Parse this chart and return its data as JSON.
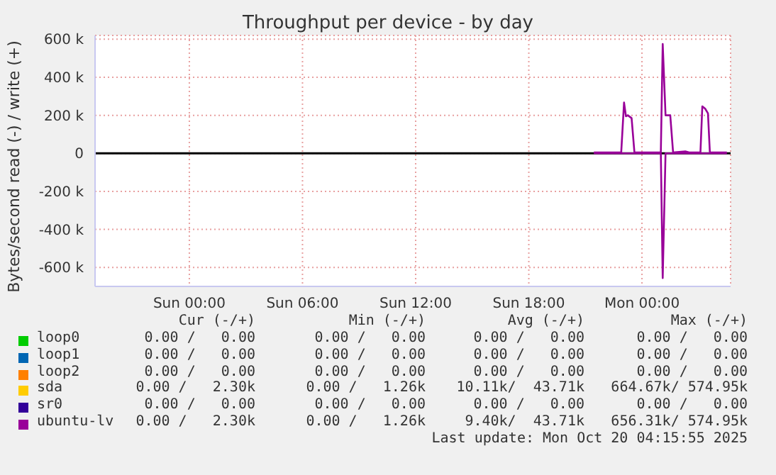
{
  "chart_data": {
    "type": "line",
    "title": "Throughput per device - by day",
    "ylabel": "Bytes/second read (-) / write (+)",
    "xlim": [
      "2025-10-18T19:00",
      "2025-10-20T04:42"
    ],
    "xticks": [
      {
        "value": "2025-10-19T00:00",
        "label": "Sun 00:00"
      },
      {
        "value": "2025-10-19T06:00",
        "label": "Sun 06:00"
      },
      {
        "value": "2025-10-19T12:00",
        "label": "Sun 12:00"
      },
      {
        "value": "2025-10-19T18:00",
        "label": "Sun 18:00"
      },
      {
        "value": "2025-10-20T00:00",
        "label": "Mon 00:00"
      }
    ],
    "ylim": [
      -700000,
      620000
    ],
    "yticks": [
      {
        "value": -600000,
        "label": "-600 k"
      },
      {
        "value": -400000,
        "label": "-400 k"
      },
      {
        "value": -200000,
        "label": "-200 k"
      },
      0,
      {
        "value": 200000,
        "label": "200 k"
      },
      {
        "value": 400000,
        "label": "400 k"
      },
      {
        "value": 600000,
        "label": "600 k"
      }
    ],
    "grid": true,
    "legend": "bottom",
    "marker": "none",
    "line_style": "solid",
    "ref_lines": [
      {
        "axis": "y",
        "value": 0,
        "color": "#000000"
      }
    ],
    "series": [
      {
        "name": "loop0",
        "color": "#00cc00"
      },
      {
        "name": "loop1",
        "color": "#0066b3"
      },
      {
        "name": "loop2",
        "color": "#ff8000"
      },
      {
        "name": "sda",
        "color": "#ffcc00"
      },
      {
        "name": "sr0",
        "color": "#330099"
      },
      {
        "name": "ubuntu-lv",
        "color": "#990099",
        "x": [
          "2025-10-19T21:27",
          "2025-10-19T22:54",
          "2025-10-19T23:03",
          "2025-10-19T23:09",
          "2025-10-19T23:15",
          "2025-10-19T23:27",
          "2025-10-19T23:36",
          "2025-10-20T01:00",
          "2025-10-20T01:06",
          "2025-10-20T01:15",
          "2025-10-20T01:30",
          "2025-10-20T01:39",
          "2025-10-20T02:18",
          "2025-10-20T02:30",
          "2025-10-20T03:06",
          "2025-10-20T03:12",
          "2025-10-20T03:21",
          "2025-10-20T03:30",
          "2025-10-20T03:36",
          "2025-10-20T04:30"
        ],
        "values": [
          5000,
          5000,
          267000,
          195000,
          200000,
          185000,
          5000,
          5000,
          575000,
          200000,
          200000,
          5000,
          10000,
          5000,
          5000,
          247000,
          235000,
          210000,
          5000,
          5000
        ]
      },
      {
        "color": "#990099",
        "x": [
          "2025-10-19T21:27",
          "2025-10-20T01:00",
          "2025-10-20T01:06",
          "2025-10-20T01:15",
          "2025-10-20T04:30"
        ],
        "values": [
          0,
          0,
          -656000,
          0,
          0
        ]
      }
    ],
    "annotations": [
      "Cur (-/+)",
      "Min (-/+)",
      "Avg (-/+)",
      "Max (-/+)",
      "0.00 /   0.00",
      "0.00 /   0.00",
      "0.00 /   0.00",
      "0.00 /   0.00",
      "0.00 /   0.00",
      "0.00 /   0.00",
      "0.00 /   0.00",
      "0.00 /   0.00",
      "0.00 /   0.00",
      "0.00 /   0.00",
      "0.00 /   0.00",
      "0.00 /   0.00",
      "0.00 /   2.30k",
      "0.00 /   1.26k",
      "10.11k/  43.71k",
      "664.67k/ 574.95k",
      "0.00 /   0.00",
      "0.00 /   0.00",
      "0.00 /   0.00",
      "0.00 /   0.00",
      "0.00 /   2.30k",
      "0.00 /   1.26k",
      "9.40k/  43.71k",
      "656.31k/ 574.95k",
      "Last update: Mon Oct 20 04:15:55 2025"
    ]
  }
}
